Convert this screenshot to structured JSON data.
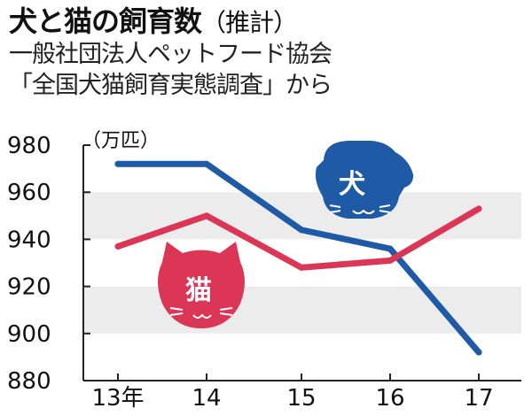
{
  "header": {
    "title": "犬と猫の飼育数",
    "title_note": "（推計）",
    "source_line1": "一般社団法人ペットフード協会",
    "source_line2": "「全国犬猫飼育実態調査」から"
  },
  "colors": {
    "dog": "#1f5aa6",
    "cat": "#dc3657",
    "band": "#ececec",
    "axis": "#222222"
  },
  "chart_data": {
    "type": "line",
    "unit_label": "（万匹）",
    "categories": [
      "13年",
      "14",
      "15",
      "16",
      "17"
    ],
    "x": [
      2013,
      2014,
      2015,
      2016,
      2017
    ],
    "ylim": [
      880,
      980
    ],
    "yticks": [
      980,
      960,
      940,
      920,
      900,
      880
    ],
    "series": [
      {
        "name": "犬",
        "color": "#1f5aa6",
        "values": [
          972,
          972,
          944,
          936,
          892
        ]
      },
      {
        "name": "猫",
        "color": "#dc3657",
        "values": [
          937,
          950,
          928,
          931,
          953
        ]
      }
    ],
    "legend": "inline mascot labels (dog top-right, cat left)",
    "grid": "alternating horizontal bands"
  }
}
